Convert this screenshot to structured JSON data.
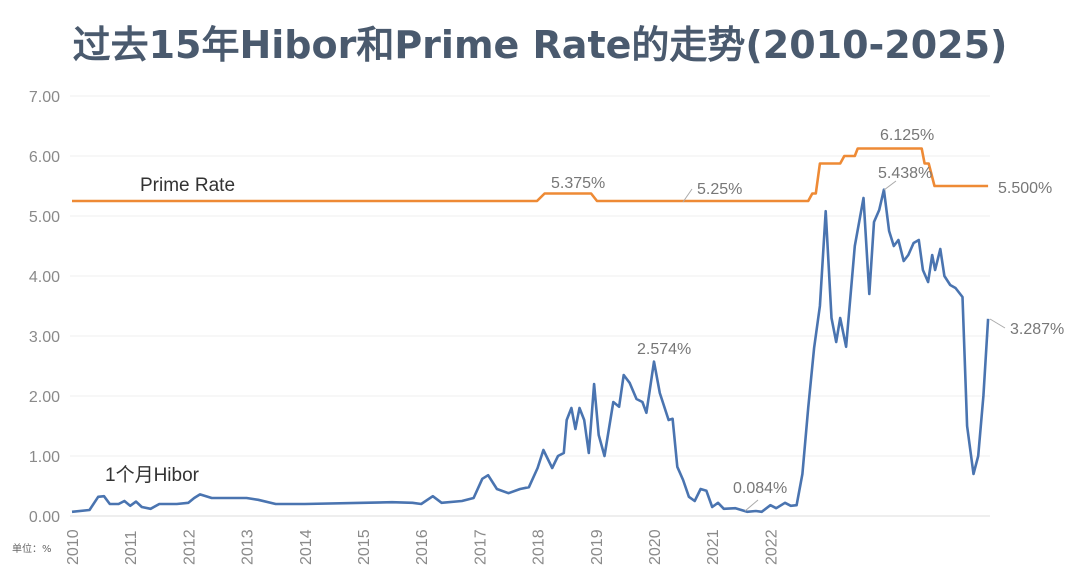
{
  "chart_data": {
    "type": "line",
    "title": "过去15年Hibor和Prime Rate的走势(2010-2025)",
    "unit_label": "单位：%",
    "ylim": [
      0,
      7
    ],
    "y_ticks": [
      "0.00",
      "1.00",
      "2.00",
      "3.00",
      "4.00",
      "5.00",
      "6.00",
      "7.00"
    ],
    "x_ticks": [
      "2010",
      "2011",
      "2012",
      "2013",
      "2014",
      "2015",
      "2016",
      "2017",
      "2018",
      "2019",
      "2020",
      "2021",
      "2022"
    ],
    "grid": true,
    "colors": {
      "hibor": "#4a74b0",
      "prime": "#ee8a35",
      "title": "#4a5a6e"
    },
    "series": [
      {
        "name": "Prime Rate",
        "points": [
          [
            2010.0,
            5.25
          ],
          [
            2017.99,
            5.25
          ],
          [
            2018.12,
            5.375
          ],
          [
            2018.92,
            5.375
          ],
          [
            2019.02,
            5.25
          ],
          [
            2022.65,
            5.25
          ],
          [
            2022.72,
            5.375
          ],
          [
            2022.78,
            5.375
          ],
          [
            2022.85,
            5.875
          ],
          [
            2023.2,
            5.875
          ],
          [
            2023.27,
            6.0
          ],
          [
            2023.45,
            6.0
          ],
          [
            2023.5,
            6.125
          ],
          [
            2024.6,
            6.125
          ],
          [
            2024.65,
            5.875
          ],
          [
            2024.72,
            5.875
          ],
          [
            2024.82,
            5.5
          ],
          [
            2025.74,
            5.5
          ]
        ]
      },
      {
        "name": "1个月Hibor",
        "points": [
          [
            2010.0,
            0.07
          ],
          [
            2010.3,
            0.1
          ],
          [
            2010.45,
            0.32
          ],
          [
            2010.55,
            0.33
          ],
          [
            2010.65,
            0.2
          ],
          [
            2010.8,
            0.2
          ],
          [
            2010.9,
            0.25
          ],
          [
            2011.0,
            0.17
          ],
          [
            2011.1,
            0.24
          ],
          [
            2011.2,
            0.15
          ],
          [
            2011.35,
            0.12
          ],
          [
            2011.5,
            0.2
          ],
          [
            2011.8,
            0.2
          ],
          [
            2012.0,
            0.22
          ],
          [
            2012.1,
            0.3
          ],
          [
            2012.2,
            0.36
          ],
          [
            2012.4,
            0.3
          ],
          [
            2013.0,
            0.3
          ],
          [
            2013.2,
            0.27
          ],
          [
            2013.5,
            0.2
          ],
          [
            2014.0,
            0.2
          ],
          [
            2015.0,
            0.22
          ],
          [
            2015.5,
            0.23
          ],
          [
            2015.85,
            0.22
          ],
          [
            2016.0,
            0.2
          ],
          [
            2016.2,
            0.33
          ],
          [
            2016.35,
            0.22
          ],
          [
            2016.7,
            0.25
          ],
          [
            2016.9,
            0.3
          ],
          [
            2017.05,
            0.62
          ],
          [
            2017.15,
            0.68
          ],
          [
            2017.3,
            0.45
          ],
          [
            2017.5,
            0.38
          ],
          [
            2017.7,
            0.45
          ],
          [
            2017.85,
            0.48
          ],
          [
            2018.0,
            0.8
          ],
          [
            2018.1,
            1.1
          ],
          [
            2018.25,
            0.8
          ],
          [
            2018.35,
            1.0
          ],
          [
            2018.45,
            1.05
          ],
          [
            2018.5,
            1.6
          ],
          [
            2018.58,
            1.8
          ],
          [
            2018.65,
            1.45
          ],
          [
            2018.72,
            1.8
          ],
          [
            2018.8,
            1.6
          ],
          [
            2018.88,
            1.05
          ],
          [
            2018.97,
            2.2
          ],
          [
            2019.05,
            1.35
          ],
          [
            2019.15,
            1.0
          ],
          [
            2019.3,
            1.9
          ],
          [
            2019.4,
            1.82
          ],
          [
            2019.48,
            2.35
          ],
          [
            2019.58,
            2.22
          ],
          [
            2019.7,
            1.95
          ],
          [
            2019.8,
            1.9
          ],
          [
            2019.87,
            1.72
          ],
          [
            2020.0,
            2.574
          ],
          [
            2020.1,
            2.05
          ],
          [
            2020.25,
            1.6
          ],
          [
            2020.32,
            1.62
          ],
          [
            2020.4,
            0.82
          ],
          [
            2020.5,
            0.6
          ],
          [
            2020.6,
            0.32
          ],
          [
            2020.7,
            0.25
          ],
          [
            2020.8,
            0.45
          ],
          [
            2020.9,
            0.42
          ],
          [
            2021.0,
            0.15
          ],
          [
            2021.1,
            0.22
          ],
          [
            2021.2,
            0.12
          ],
          [
            2021.4,
            0.13
          ],
          [
            2021.6,
            0.07
          ],
          [
            2021.75,
            0.084
          ],
          [
            2021.85,
            0.07
          ],
          [
            2022.0,
            0.18
          ],
          [
            2022.1,
            0.13
          ],
          [
            2022.25,
            0.22
          ],
          [
            2022.35,
            0.17
          ],
          [
            2022.45,
            0.18
          ],
          [
            2022.55,
            0.7
          ],
          [
            2022.65,
            1.8
          ],
          [
            2022.75,
            2.8
          ],
          [
            2022.85,
            3.5
          ],
          [
            2022.95,
            5.08
          ],
          [
            2023.05,
            3.3
          ],
          [
            2023.13,
            2.9
          ],
          [
            2023.2,
            3.3
          ],
          [
            2023.3,
            2.82
          ],
          [
            2023.45,
            4.5
          ],
          [
            2023.6,
            5.3
          ],
          [
            2023.7,
            3.7
          ],
          [
            2023.78,
            4.9
          ],
          [
            2023.87,
            5.1
          ],
          [
            2023.95,
            5.438
          ],
          [
            2024.04,
            4.75
          ],
          [
            2024.12,
            4.5
          ],
          [
            2024.2,
            4.6
          ],
          [
            2024.29,
            4.25
          ],
          [
            2024.37,
            4.35
          ],
          [
            2024.46,
            4.55
          ],
          [
            2024.55,
            4.6
          ],
          [
            2024.62,
            4.1
          ],
          [
            2024.71,
            3.9
          ],
          [
            2024.78,
            4.35
          ],
          [
            2024.83,
            4.1
          ],
          [
            2024.92,
            4.45
          ],
          [
            2024.99,
            4.0
          ],
          [
            2025.09,
            3.85
          ],
          [
            2025.18,
            3.8
          ],
          [
            2025.3,
            3.65
          ],
          [
            2025.38,
            1.5
          ],
          [
            2025.49,
            0.7
          ],
          [
            2025.57,
            1.0
          ],
          [
            2025.66,
            2.0
          ],
          [
            2025.74,
            3.287
          ]
        ]
      }
    ],
    "annotations": [
      "5.375%",
      "5.25%",
      "6.125%",
      "5.438%",
      "5.500%",
      "3.287%",
      "2.574%",
      "0.084%"
    ]
  }
}
